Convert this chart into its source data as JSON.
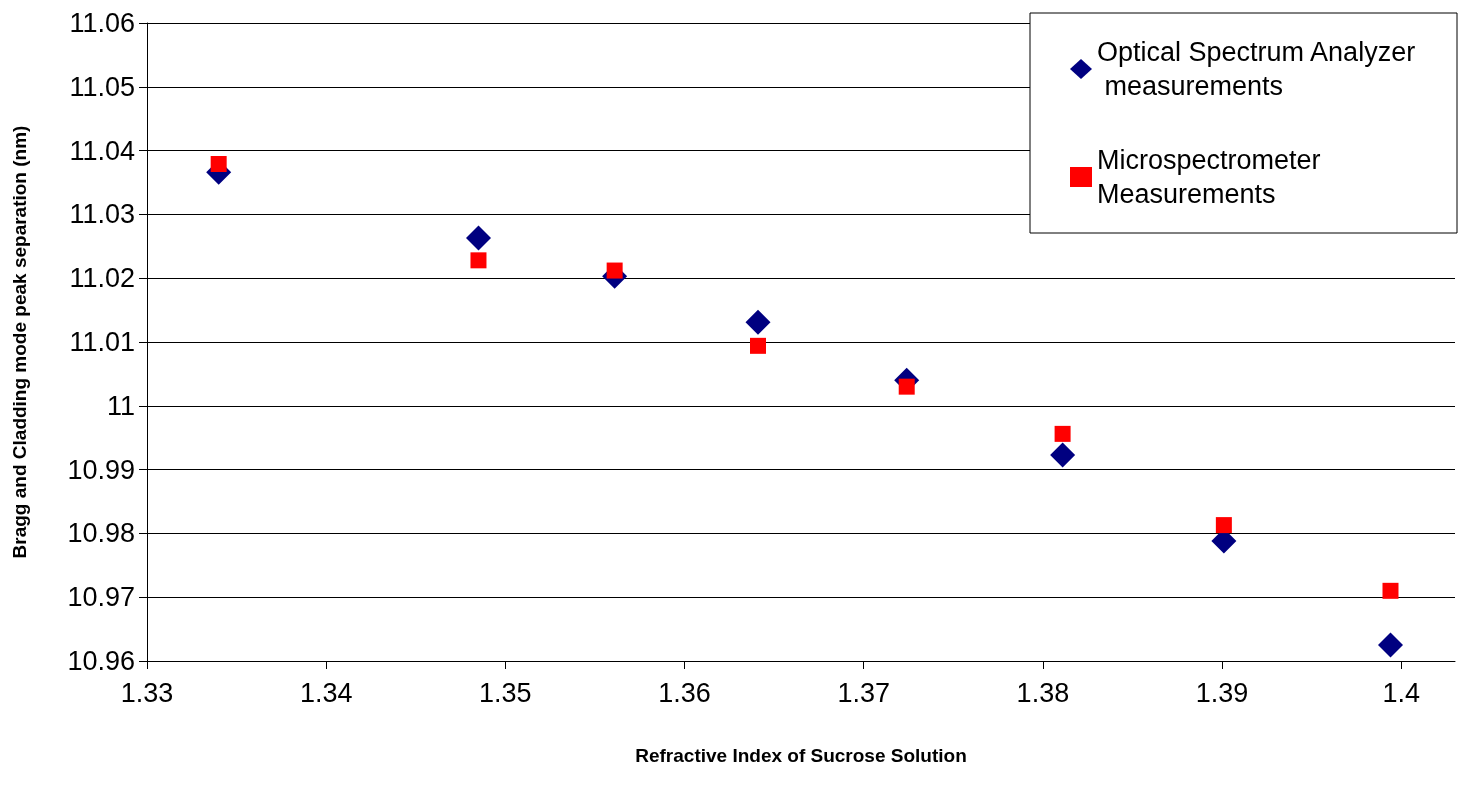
{
  "chart_data": {
    "type": "scatter",
    "xlabel": "Refractive Index of Sucrose Solution",
    "ylabel": "Bragg and Cladding mode peak separation (nm)",
    "xlim": [
      1.33,
      1.403
    ],
    "ylim": [
      10.96,
      11.06
    ],
    "xticks": [
      1.33,
      1.34,
      1.35,
      1.36,
      1.37,
      1.38,
      1.39,
      1.4
    ],
    "yticks": [
      10.96,
      10.97,
      10.98,
      10.99,
      11,
      11.01,
      11.02,
      11.03,
      11.04,
      11.05,
      11.06
    ],
    "grid": "y",
    "legend": "top right",
    "series": [
      {
        "name": "Optical Spectrum Analyzer measurements",
        "color": "#000080",
        "marker": "diamond",
        "x": [
          1.334,
          1.3485,
          1.3561,
          1.3641,
          1.3724,
          1.3811,
          1.3901,
          1.3994
        ],
        "values": [
          11.0366,
          11.0263,
          11.0203,
          11.0131,
          11.004,
          10.9923,
          10.9788,
          10.9625
        ]
      },
      {
        "name": "Microspectrometer Measurements",
        "color": "#ff0000",
        "marker": "square",
        "x": [
          1.334,
          1.3485,
          1.3561,
          1.3641,
          1.3724,
          1.3811,
          1.3901,
          1.3994
        ],
        "values": [
          11.0379,
          11.0228,
          11.0212,
          11.0094,
          11.003,
          10.9956,
          10.9813,
          10.971
        ]
      }
    ]
  }
}
